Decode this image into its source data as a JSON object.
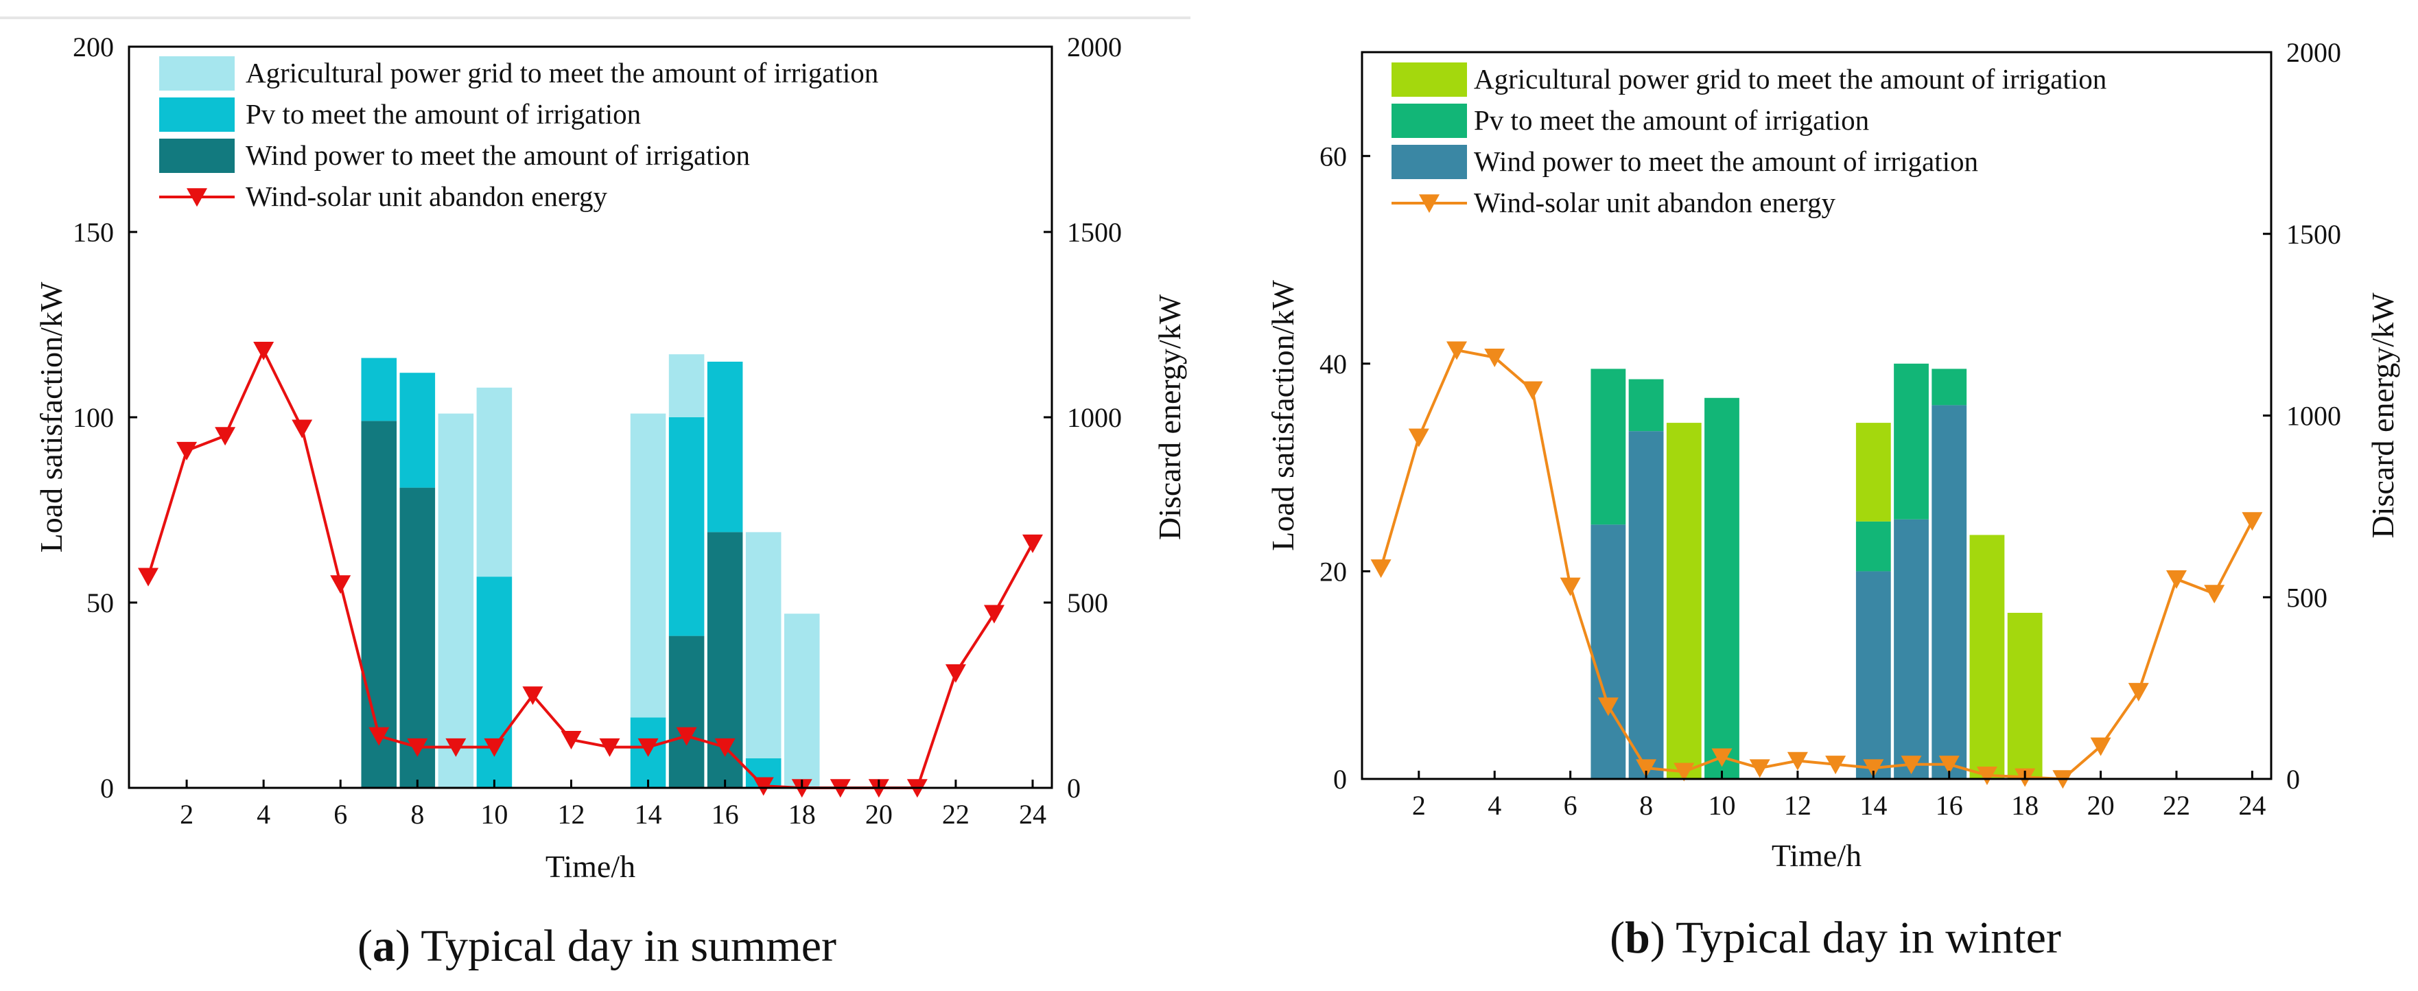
{
  "chart_data": [
    {
      "type": "bar",
      "panel_id": "a",
      "caption_letter": "a",
      "caption_text": ") Typical day in summer",
      "caption_open": "(",
      "x": [
        1,
        2,
        3,
        4,
        5,
        6,
        7,
        8,
        9,
        10,
        11,
        12,
        13,
        14,
        15,
        16,
        17,
        18,
        19,
        20,
        21,
        22,
        23,
        24
      ],
      "xticks": [
        2,
        4,
        6,
        8,
        10,
        12,
        14,
        16,
        18,
        20,
        22,
        24
      ],
      "xlim": [
        0.5,
        24.5
      ],
      "xlabel": "Time/h",
      "ylabel": "Load satisfaction/kW",
      "ylim": [
        0,
        200
      ],
      "yticks": [
        0,
        50,
        100,
        150,
        200
      ],
      "y2label": "Discard energy/kW",
      "y2lim": [
        0,
        2000
      ],
      "y2ticks": [
        0,
        500,
        1000,
        1500,
        2000
      ],
      "legend_position": "top-left",
      "stacked_series": [
        {
          "name": "Wind power to meet the amount of irrigation",
          "color": "#127a7f",
          "values": [
            0,
            0,
            0,
            0,
            0,
            0,
            99,
            81,
            0,
            0,
            0,
            0,
            0,
            0,
            41,
            69,
            0,
            0,
            0,
            0,
            0,
            0,
            0,
            0
          ]
        },
        {
          "name": "Pv to meet the amount of irrigation",
          "color": "#0bc1d3",
          "values": [
            0,
            0,
            0,
            0,
            0,
            0,
            17,
            31,
            0,
            57,
            0,
            0,
            0,
            19,
            59,
            46,
            8,
            0,
            0,
            0,
            0,
            0,
            0,
            0
          ]
        },
        {
          "name": "Agricultural power grid to meet the amount of irrigation",
          "color": "#a6e6ee",
          "values": [
            0,
            0,
            0,
            0,
            0,
            0,
            0,
            0,
            101,
            51,
            0,
            0,
            0,
            82,
            17,
            0,
            61,
            47,
            0,
            0,
            0,
            0,
            0,
            0
          ]
        }
      ],
      "line_series": {
        "name": "Wind-solar unit abandon energy",
        "color": "#e81010",
        "axis": "right",
        "values": [
          570,
          910,
          950,
          1180,
          970,
          550,
          140,
          110,
          110,
          110,
          250,
          130,
          110,
          110,
          140,
          110,
          5,
          0,
          0,
          0,
          0,
          310,
          470,
          660
        ]
      },
      "legend_order": [
        "Agricultural power grid to meet the amount of irrigation",
        "Pv to meet the amount of irrigation",
        "Wind power to meet the amount of irrigation",
        "Wind-solar unit abandon energy"
      ]
    },
    {
      "type": "bar",
      "panel_id": "b",
      "caption_letter": "b",
      "caption_text": ") Typical day in winter",
      "caption_open": "(",
      "x": [
        1,
        2,
        3,
        4,
        5,
        6,
        7,
        8,
        9,
        10,
        11,
        12,
        13,
        14,
        15,
        16,
        17,
        18,
        19,
        20,
        21,
        22,
        23,
        24
      ],
      "xticks": [
        2,
        4,
        6,
        8,
        10,
        12,
        14,
        16,
        18,
        20,
        22,
        24
      ],
      "xlim": [
        0.5,
        24.5
      ],
      "xlabel": "Time/h",
      "ylabel": "Load satisfaction/kW",
      "ylim": [
        0,
        70
      ],
      "yticks": [
        0,
        20,
        40,
        60
      ],
      "y2label": "Discard energy/kW",
      "y2lim": [
        0,
        2000
      ],
      "y2ticks": [
        0,
        500,
        1000,
        1500,
        2000
      ],
      "legend_position": "top-left",
      "stacked_series": [
        {
          "name": "Wind power to meet the amount of irrigation",
          "color": "#3a87a4",
          "values": [
            0,
            0,
            0,
            0,
            0,
            0,
            24.5,
            33.5,
            0,
            0,
            0,
            0,
            0,
            20,
            25,
            36,
            0,
            0,
            0,
            0,
            0,
            0,
            0,
            0
          ]
        },
        {
          "name": "Pv to meet the amount of irrigation",
          "color": "#12b677",
          "values": [
            0,
            0,
            0,
            0,
            0,
            0,
            15,
            5,
            0,
            36.7,
            0,
            0,
            0,
            4.8,
            15,
            3.5,
            0,
            0,
            0,
            0,
            0,
            0,
            0,
            0
          ]
        },
        {
          "name": "Agricultural power grid to meet the amount of irrigation",
          "color": "#a4d80d",
          "values": [
            0,
            0,
            0,
            0,
            0,
            0,
            0,
            0,
            34.3,
            0,
            0,
            0,
            0,
            9.5,
            0,
            0,
            23.5,
            16,
            0,
            0,
            0,
            0,
            0,
            0
          ]
        }
      ],
      "line_series": {
        "name": "Wind-solar unit abandon energy",
        "color": "#f08a1a",
        "axis": "right",
        "values": [
          580,
          940,
          1180,
          1160,
          1070,
          530,
          200,
          30,
          20,
          60,
          30,
          50,
          40,
          30,
          40,
          40,
          10,
          5,
          0,
          90,
          240,
          550,
          510,
          710
        ]
      },
      "legend_order": [
        "Agricultural power grid to meet the amount of irrigation",
        "Pv to meet the amount of irrigation",
        "Wind power to meet the amount of irrigation",
        "Wind-solar unit abandon energy"
      ]
    }
  ]
}
